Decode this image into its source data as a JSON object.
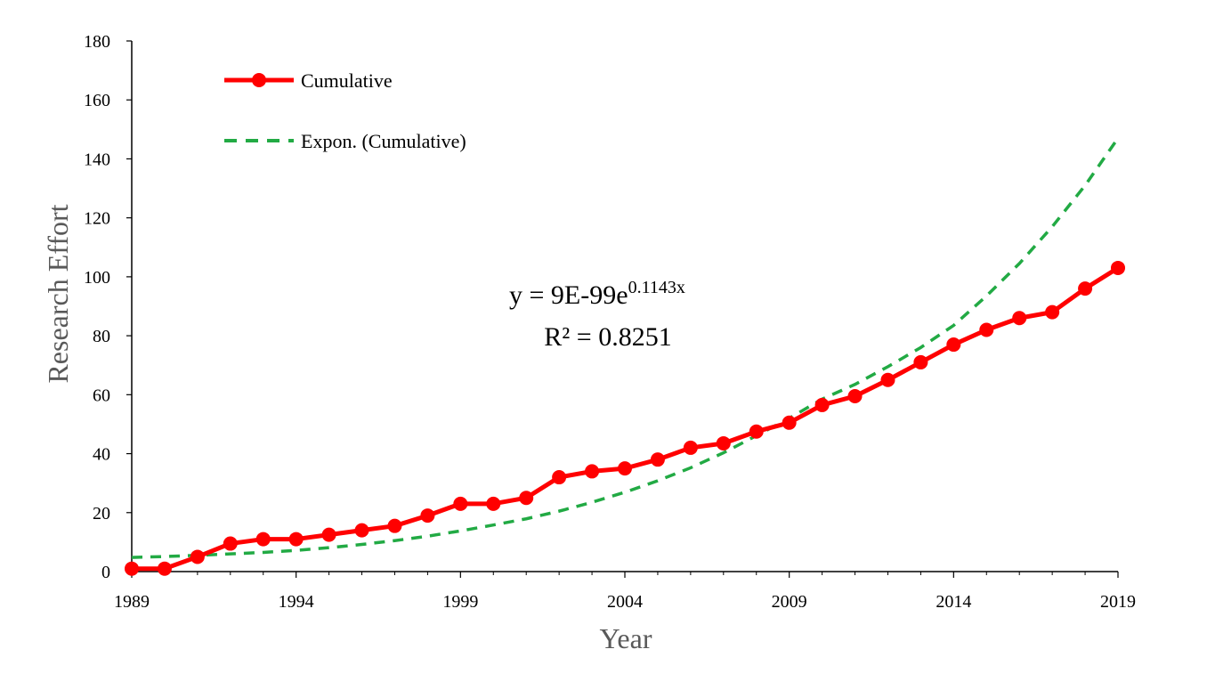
{
  "chart_data": {
    "type": "line",
    "title": "",
    "xlabel": "Year",
    "ylabel": "Research Effort",
    "xlim": [
      1989,
      2019
    ],
    "ylim": [
      0,
      180
    ],
    "x_ticks": [
      "1989",
      "1994",
      "1999",
      "2004",
      "2009",
      "2014",
      "2019"
    ],
    "y_ticks": [
      "0",
      "20",
      "40",
      "60",
      "80",
      "100",
      "120",
      "140",
      "160",
      "180"
    ],
    "grid": false,
    "legend": {
      "placement": "top-left"
    },
    "series": [
      {
        "name": "Cumulative",
        "color": "#ff0000",
        "style": "solid-markers",
        "x": [
          1989,
          1990,
          1991,
          1992,
          1993,
          1994,
          1995,
          1996,
          1997,
          1998,
          1999,
          2000,
          2001,
          2002,
          2003,
          2004,
          2005,
          2006,
          2007,
          2008,
          2009,
          2010,
          2011,
          2012,
          2013,
          2014,
          2015,
          2016,
          2017,
          2018,
          2019
        ],
        "values": [
          1,
          1,
          5,
          9.5,
          11,
          11,
          12.5,
          14,
          15.5,
          19,
          23,
          23,
          25,
          32,
          34,
          35,
          38,
          42,
          43.5,
          47.5,
          50.5,
          56.5,
          59.5,
          65,
          71,
          77,
          82,
          86,
          88,
          96,
          103
        ]
      },
      {
        "name": "Expon. (Cumulative)",
        "color": "#22aa44",
        "style": "dashed",
        "trendline": {
          "type": "exponential",
          "a": 9e-99,
          "b": 0.1143
        },
        "x": [
          1989,
          1990,
          1991,
          1992,
          1993,
          1994,
          1995,
          1996,
          1997,
          1998,
          1999,
          2000,
          2001,
          2002,
          2003,
          2004,
          2005,
          2006,
          2007,
          2008,
          2009,
          2010,
          2011,
          2012,
          2013,
          2014,
          2015,
          2016,
          2017,
          2018,
          2019
        ],
        "values": [
          4.8,
          5.1,
          5.5,
          6.0,
          6.5,
          7.2,
          8.1,
          9.2,
          10.5,
          12.0,
          13.8,
          15.8,
          17.9,
          20.5,
          23.5,
          26.9,
          30.8,
          35.2,
          40.3,
          46.1,
          52.0,
          58.5,
          63.5,
          69.5,
          76.0,
          83.5,
          93.5,
          104.5,
          117.0,
          131.0,
          147.0
        ]
      }
    ],
    "annotations": {
      "equation_base": "y = 9E-99e",
      "equation_exponent": "0.1143x",
      "r_squared": "R² = 0.8251"
    }
  }
}
